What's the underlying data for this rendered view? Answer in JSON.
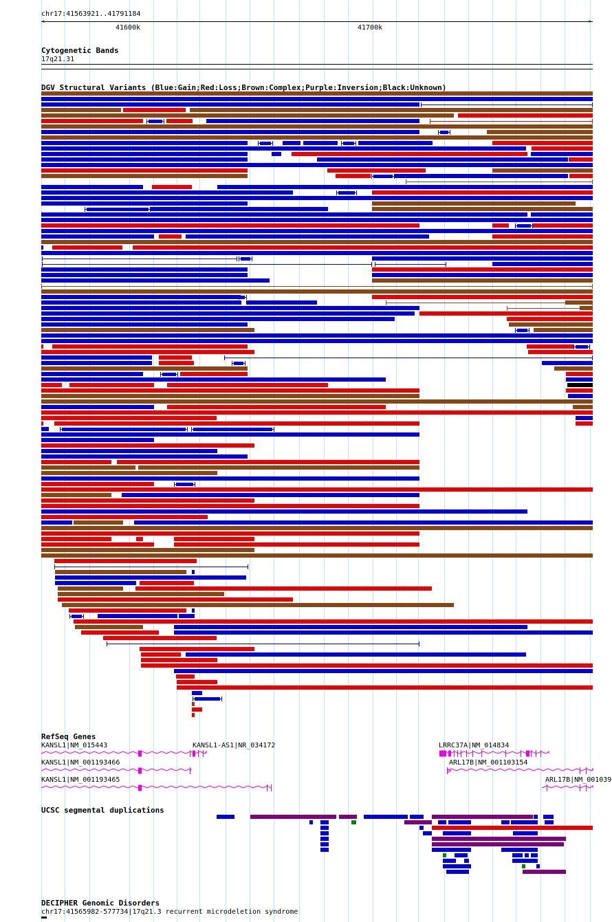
{
  "ruler": {
    "location": "chr17:41563921..41791184",
    "tick_labels": [
      "41600k",
      "41700k"
    ]
  },
  "cytoband": {
    "title": "Cytogenetic Bands",
    "band": "17q21.31"
  },
  "dgv": {
    "title": "DGV Structural Variants (Blue:Gain;Red:Loss;Brown:Complex;Purple:Inversion;Black:Unknown)"
  },
  "refseq": {
    "title": "RefSeq Genes",
    "genes": [
      "KANSL1|NM_015443",
      "KANSL1-AS1|NR_034172",
      "LRRC37A|NM_014834",
      "KANSL1|NM_001193466",
      "ARL17B|NM_001103154",
      "KANSL1|NM_001193465",
      "ARL17B|NM_001039"
    ]
  },
  "segdup": {
    "title": "UCSC segmental duplications"
  },
  "decipher": {
    "title": "DECIPHER Genomic Disorders",
    "entry": "chr17:41565982-577734|17q21.3 recurrent microdeletion syndrome"
  },
  "colors": {
    "gain": "#0000e0",
    "loss": "#ee0000",
    "complex": "#8b4513",
    "inversion": "#800080",
    "unknown": "#000000",
    "gene": "#ee00ee",
    "segdup_green": "#008800",
    "grid": "#bfe3f7"
  }
}
